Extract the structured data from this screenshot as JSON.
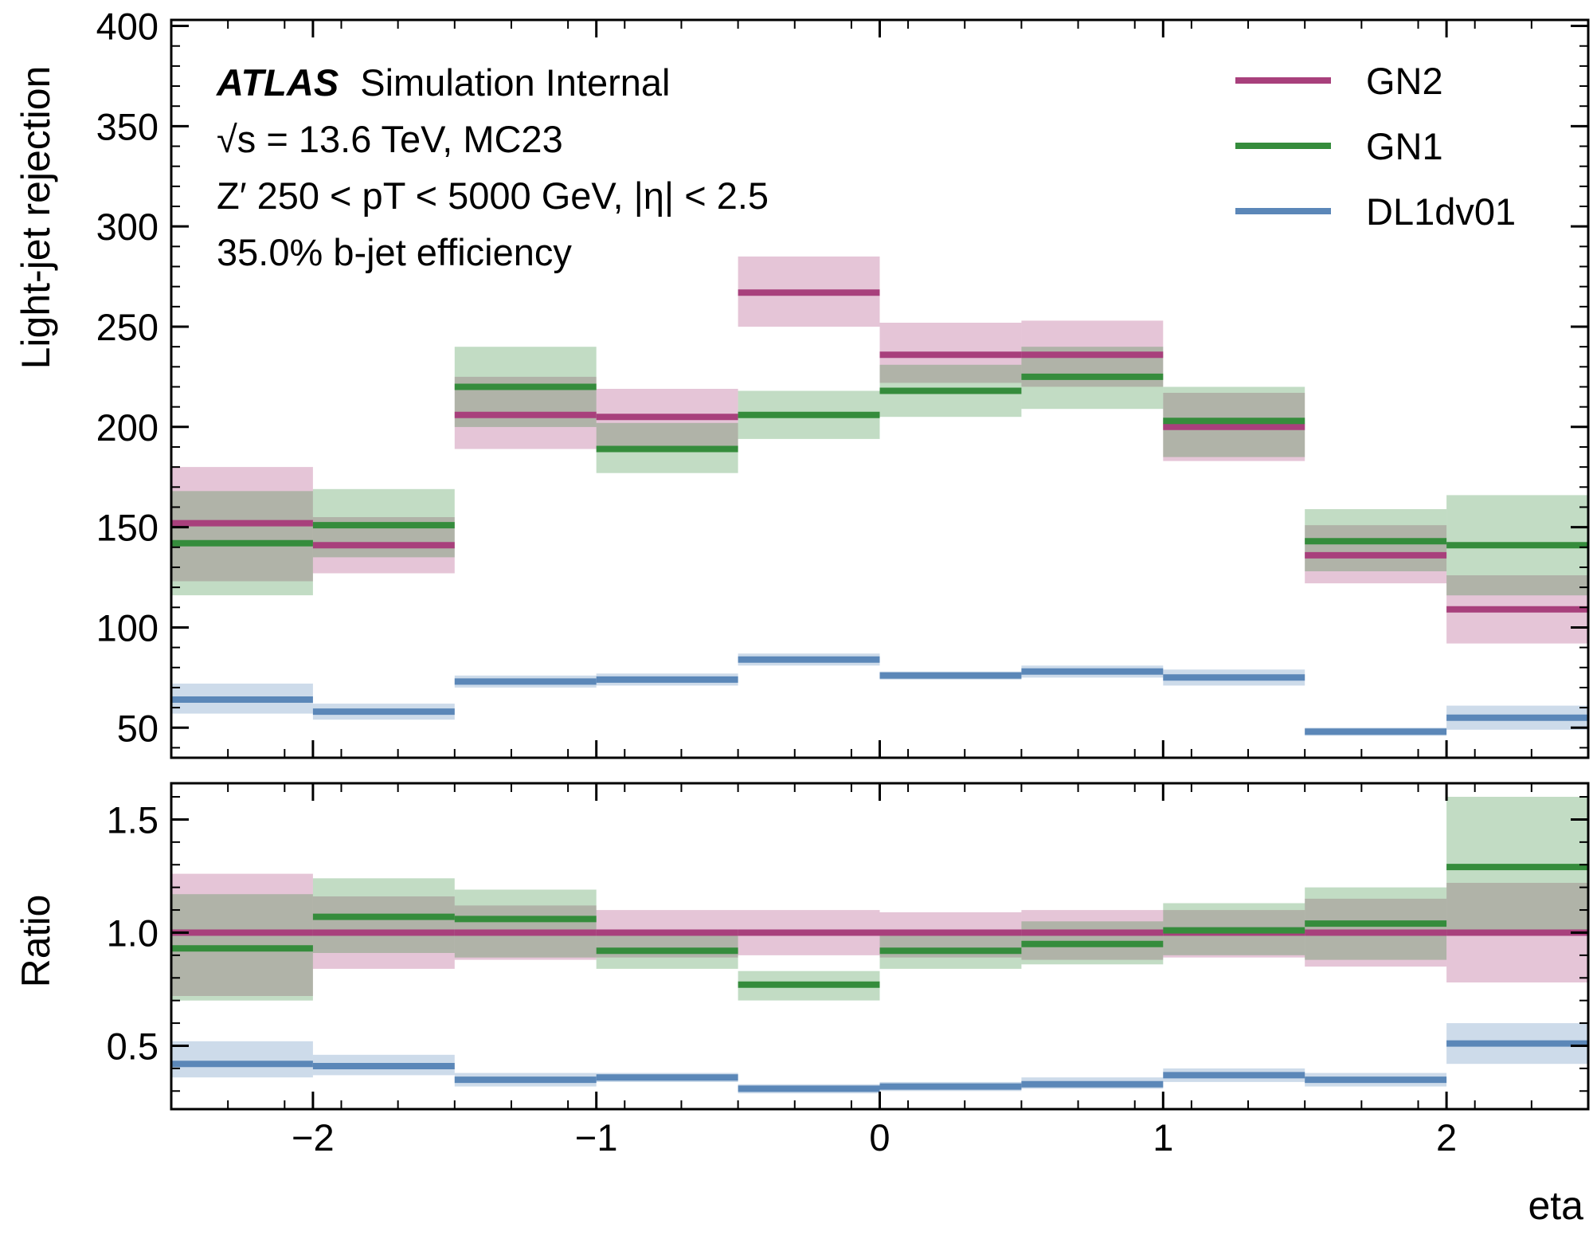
{
  "chart_data": [
    {
      "type": "step",
      "panel": "main",
      "x_edges": [
        -2.5,
        -2.0,
        -1.5,
        -1.0,
        -0.5,
        0.0,
        0.5,
        1.0,
        1.5,
        2.0,
        2.5
      ],
      "ylabel": "Light-jet rejection",
      "ylim": [
        35,
        403
      ],
      "yticks": [
        50,
        100,
        150,
        200,
        250,
        300,
        350,
        400
      ],
      "grid": false,
      "legend_position": "top-right",
      "series": [
        {
          "name": "GN2",
          "color": "#a8407c",
          "values": [
            152,
            141,
            206,
            205,
            267,
            236,
            236,
            200,
            136,
            109
          ],
          "band_low": [
            123,
            127,
            189,
            189,
            250,
            222,
            220,
            183,
            122,
            92
          ],
          "band_high": [
            180,
            155,
            225,
            219,
            285,
            252,
            253,
            217,
            151,
            126
          ]
        },
        {
          "name": "GN1",
          "color": "#358c3c",
          "values": [
            142,
            151,
            220,
            189,
            206,
            218,
            225,
            203,
            143,
            141
          ],
          "band_low": [
            116,
            135,
            200,
            177,
            194,
            205,
            209,
            185,
            128,
            116
          ],
          "band_high": [
            168,
            169,
            240,
            202,
            218,
            231,
            240,
            220,
            159,
            166
          ]
        },
        {
          "name": "DL1dv01",
          "color": "#5b87b8",
          "values": [
            64,
            58,
            73,
            74,
            84,
            76,
            78,
            75,
            48,
            55
          ],
          "band_low": [
            57,
            54,
            70,
            71,
            81,
            74,
            75,
            71,
            46,
            49
          ],
          "band_high": [
            72,
            62,
            76,
            77,
            87,
            78,
            81,
            79,
            50,
            61
          ]
        }
      ],
      "annotations": {
        "atlas_label": "ATLAS",
        "atlas_suffix": "Simulation Internal",
        "line_energy": "√s = 13.6 TeV, MC23",
        "line_sample": "Z′ 250 < pT < 5000 GeV, |η| < 2.5",
        "line_efficiency": "35.0% b-jet efficiency"
      }
    },
    {
      "type": "step",
      "panel": "ratio",
      "x_edges": [
        -2.5,
        -2.0,
        -1.5,
        -1.0,
        -0.5,
        0.0,
        0.5,
        1.0,
        1.5,
        2.0,
        2.5
      ],
      "xlabel": "eta",
      "xlim": [
        -2.5,
        2.5
      ],
      "xticks": [
        -2,
        -1,
        0,
        1,
        2
      ],
      "xtick_labels": [
        "−2",
        "−1",
        "0",
        "1",
        "2"
      ],
      "ylabel": "Ratio",
      "ylim": [
        0.22,
        1.66
      ],
      "yticks": [
        0.5,
        1.0,
        1.5
      ],
      "ytick_labels": [
        "0.5",
        "1.0",
        "1.5"
      ],
      "series": [
        {
          "name": "GN2",
          "color": "#a8407c",
          "values": [
            1.0,
            1.0,
            1.0,
            1.0,
            1.0,
            1.0,
            1.0,
            1.0,
            1.0,
            1.0
          ],
          "band_low": [
            0.72,
            0.84,
            0.88,
            0.89,
            0.9,
            0.89,
            0.88,
            0.89,
            0.85,
            0.78
          ],
          "band_high": [
            1.26,
            1.16,
            1.12,
            1.1,
            1.1,
            1.09,
            1.1,
            1.1,
            1.15,
            1.22
          ]
        },
        {
          "name": "GN1",
          "color": "#358c3c",
          "values": [
            0.93,
            1.07,
            1.06,
            0.92,
            0.77,
            0.92,
            0.95,
            1.01,
            1.04,
            1.29
          ],
          "band_low": [
            0.7,
            0.91,
            0.89,
            0.84,
            0.7,
            0.84,
            0.86,
            0.9,
            0.88,
            1.0
          ],
          "band_high": [
            1.17,
            1.24,
            1.19,
            1.0,
            0.83,
            0.99,
            1.05,
            1.13,
            1.2,
            1.6
          ]
        },
        {
          "name": "DL1dv01",
          "color": "#5b87b8",
          "values": [
            0.42,
            0.41,
            0.35,
            0.36,
            0.31,
            0.32,
            0.33,
            0.37,
            0.35,
            0.51
          ],
          "band_low": [
            0.36,
            0.37,
            0.32,
            0.34,
            0.29,
            0.3,
            0.31,
            0.34,
            0.32,
            0.42
          ],
          "band_high": [
            0.52,
            0.46,
            0.38,
            0.38,
            0.33,
            0.34,
            0.36,
            0.4,
            0.38,
            0.6
          ]
        }
      ]
    }
  ]
}
